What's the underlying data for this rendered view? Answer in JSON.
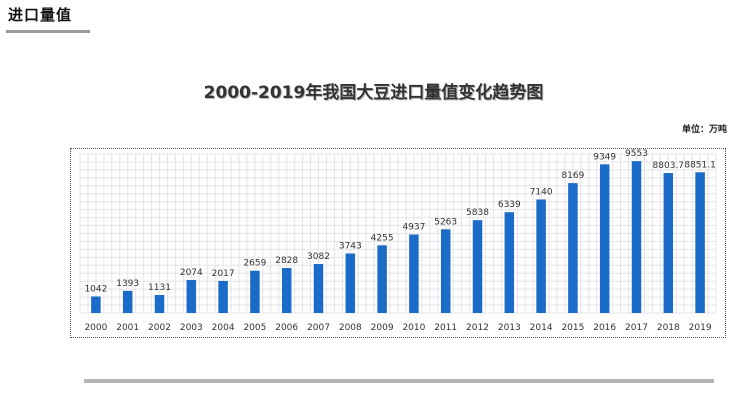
{
  "header": {
    "section_title": "进口量值"
  },
  "chart_data": {
    "type": "bar",
    "title": "2000-2019年我国大豆进口量值变化趋势图",
    "unit": "单位：万吨",
    "xlabel": "",
    "ylabel": "",
    "ylim": [
      0,
      10000
    ],
    "grid": true,
    "bar_color": "#1a6cc8",
    "categories": [
      "2000",
      "2001",
      "2002",
      "2003",
      "2004",
      "2005",
      "2006",
      "2007",
      "2008",
      "2009",
      "2010",
      "2011",
      "2012",
      "2013",
      "2014",
      "2015",
      "2016",
      "2017",
      "2018",
      "2019"
    ],
    "values": [
      1042,
      1393,
      1131,
      2074,
      2017,
      2659,
      2828,
      3082,
      3743,
      4255,
      4937,
      5263,
      5838,
      6339,
      7140,
      8169,
      9349,
      9553,
      8803.7,
      8851.1
    ],
    "value_labels": [
      "1042",
      "1393",
      "1131",
      "2074",
      "2017",
      "2659",
      "2828",
      "3082",
      "3743",
      "4255",
      "4937",
      "5263",
      "5838",
      "6339",
      "7140",
      "8169",
      "9349",
      "9553",
      "8803.7",
      "8851.1"
    ]
  }
}
